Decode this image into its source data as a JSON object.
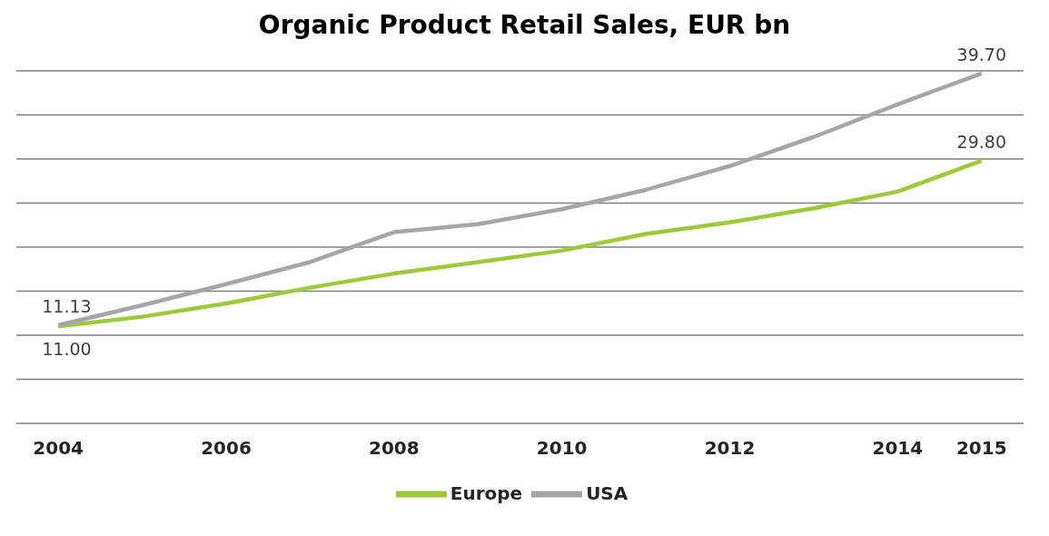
{
  "chart_data": {
    "type": "line",
    "title": "Organic Product Retail Sales, EUR bn",
    "x": [
      2004,
      2005,
      2006,
      2007,
      2008,
      2009,
      2010,
      2011,
      2012,
      2013,
      2014,
      2015
    ],
    "xlim": [
      2003.5,
      2015.5
    ],
    "xticks": [
      2004,
      2006,
      2008,
      2010,
      2012,
      2014,
      2015
    ],
    "ylim": [
      0,
      40
    ],
    "tick_labels": "x",
    "grid": "y",
    "legend": "bottom",
    "marker": "none",
    "line_style": "solid",
    "series": [
      {
        "name": "Europe",
        "color": "#9dc93b",
        "values": [
          11.0,
          12.1,
          13.6,
          15.4,
          17.0,
          18.3,
          19.6,
          21.5,
          22.8,
          24.4,
          26.3,
          29.8
        ],
        "value_labels": [
          "11.00",
          null,
          null,
          null,
          null,
          null,
          null,
          null,
          null,
          null,
          null,
          "29.80"
        ]
      },
      {
        "name": "USA",
        "color": "#a6a6a6",
        "values": [
          11.13,
          13.4,
          15.8,
          18.3,
          21.7,
          22.6,
          24.3,
          26.5,
          29.2,
          32.5,
          36.2,
          39.7
        ],
        "value_labels": [
          "11.13",
          null,
          null,
          null,
          null,
          null,
          null,
          null,
          null,
          null,
          null,
          "39.70"
        ]
      }
    ]
  }
}
